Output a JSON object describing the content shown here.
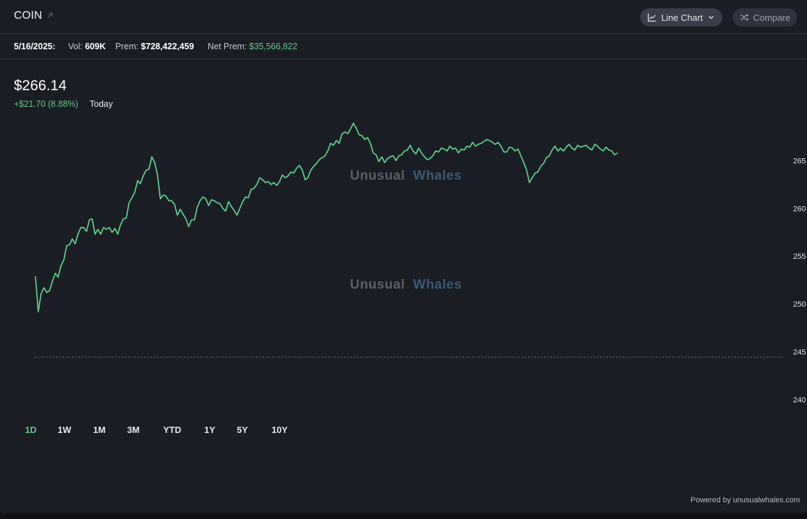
{
  "header": {
    "ticker": "COIN",
    "chart_type_label": "Line Chart",
    "compare_label": "Compare"
  },
  "stats": {
    "date": "5/16/2025:",
    "vol_label": "Vol:",
    "vol_value": "609K",
    "prem_label": "Prem:",
    "prem_value": "$728,422,459",
    "net_prem_label": "Net Prem:",
    "net_prem_value": "$35,566,822"
  },
  "quote": {
    "price": "$266.14",
    "change": "+$21.70 (8.88%)",
    "period": "Today"
  },
  "watermark": {
    "part1": "Unusual",
    "part2": "Whales"
  },
  "ranges": [
    "1D",
    "1W",
    "1M",
    "3M",
    "YTD",
    "1Y",
    "5Y",
    "10Y"
  ],
  "active_range": "1D",
  "footer": {
    "powered": "Powered by unusualwhales.com"
  },
  "colors": {
    "line": "#5fd68f",
    "accent_green": "#5fc98a",
    "background": "#1b1d24"
  },
  "chart_data": {
    "type": "line",
    "yticks": [
      240,
      245,
      250,
      255,
      260,
      265
    ],
    "ytick_labels": [
      "240",
      "245",
      "250",
      "255",
      "260",
      "265"
    ],
    "ylim": [
      238.4,
      269.6
    ],
    "reference_line": 244.44,
    "series": [
      {
        "values": [
          252.9,
          249.2,
          251.1,
          251.7,
          251.2,
          251.4,
          252.4,
          253.2,
          252.8,
          254.0,
          254.6,
          256.1,
          256.2,
          256.8,
          256.3,
          257.3,
          258.0,
          258.0,
          257.6,
          258.8,
          258.9,
          257.3,
          257.8,
          257.3,
          258.0,
          257.8,
          258.0,
          257.5,
          257.9,
          257.3,
          258.3,
          258.9,
          259.0,
          260.6,
          261.1,
          261.7,
          262.9,
          262.6,
          263.4,
          264.0,
          264.1,
          265.4,
          264.8,
          263.5,
          261.0,
          261.4,
          261.3,
          260.8,
          260.8,
          260.4,
          259.3,
          259.9,
          259.4,
          258.9,
          258.1,
          258.8,
          258.8,
          260.1,
          260.8,
          261.2,
          261.0,
          260.3,
          260.9,
          260.8,
          260.6,
          260.5,
          260.0,
          259.7,
          260.7,
          260.2,
          259.8,
          259.3,
          260.0,
          260.7,
          261.2,
          261.1,
          262.0,
          262.1,
          262.5,
          263.2,
          263.0,
          262.7,
          262.8,
          262.5,
          262.7,
          262.4,
          262.8,
          263.5,
          263.2,
          263.4,
          263.8,
          263.7,
          264.2,
          264.5,
          264.0,
          263.0,
          263.2,
          264.0,
          264.4,
          264.7,
          265.1,
          265.3,
          265.5,
          266.0,
          266.8,
          266.6,
          267.1,
          266.8,
          267.8,
          268.0,
          267.8,
          268.3,
          268.9,
          268.4,
          267.7,
          267.6,
          267.2,
          267.4,
          266.8,
          265.8,
          265.6,
          264.9,
          265.4,
          264.8,
          265.2,
          265.4,
          265.5,
          265.0,
          265.5,
          265.6,
          266.0,
          266.1,
          266.6,
          266.0,
          265.7,
          266.3,
          265.8,
          265.4,
          265.1,
          265.2,
          265.5,
          266.0,
          265.9,
          266.3,
          266.2,
          266.0,
          266.5,
          266.2,
          266.3,
          265.8,
          266.2,
          266.1,
          266.5,
          266.4,
          266.9,
          266.5,
          266.7,
          266.8,
          267.0,
          267.2,
          267.1,
          266.9,
          266.7,
          266.9,
          266.5,
          265.9,
          265.9,
          266.4,
          266.3,
          266.0,
          266.2,
          265.5,
          264.8,
          264.0,
          262.7,
          263.2,
          263.7,
          263.8,
          264.4,
          264.7,
          265.3,
          265.5,
          266.1,
          266.5,
          266.0,
          266.3,
          266.0,
          266.4,
          266.7,
          266.3,
          266.1,
          266.6,
          266.4,
          266.5,
          266.6,
          266.3,
          266.1,
          266.7,
          266.5,
          266.2,
          266.0,
          266.4,
          266.1,
          266.0,
          265.6,
          265.8
        ]
      }
    ]
  }
}
